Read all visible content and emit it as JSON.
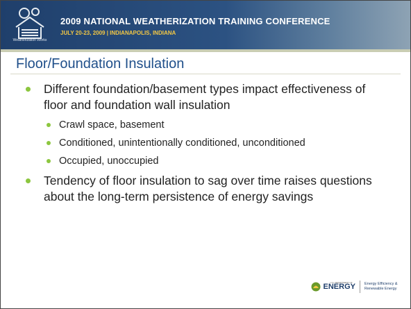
{
  "header": {
    "title": "2009 NATIONAL WEATHERIZATION TRAINING CONFERENCE",
    "subtitle": "JULY 20-23, 2009 | INDIANAPOLIS, INDIANA",
    "logo_caption": "Weatherization Works"
  },
  "slide": {
    "title": "Floor/Foundation  Insulation",
    "bullets": [
      {
        "text": "Different foundation/basement types impact effectiveness of floor and foundation wall insulation",
        "sub": [
          "Crawl space, basement",
          "Conditioned, unintentionally conditioned, unconditioned",
          "Occupied, unoccupied"
        ]
      },
      {
        "text": "Tendency of floor insulation to sag over time raises questions about the long-term persistence of energy savings",
        "sub": []
      }
    ]
  },
  "footer": {
    "dept": "U.S. DEPARTMENT OF",
    "brand": "ENERGY",
    "tagline": "Energy Efficiency & Renewable Energy"
  }
}
